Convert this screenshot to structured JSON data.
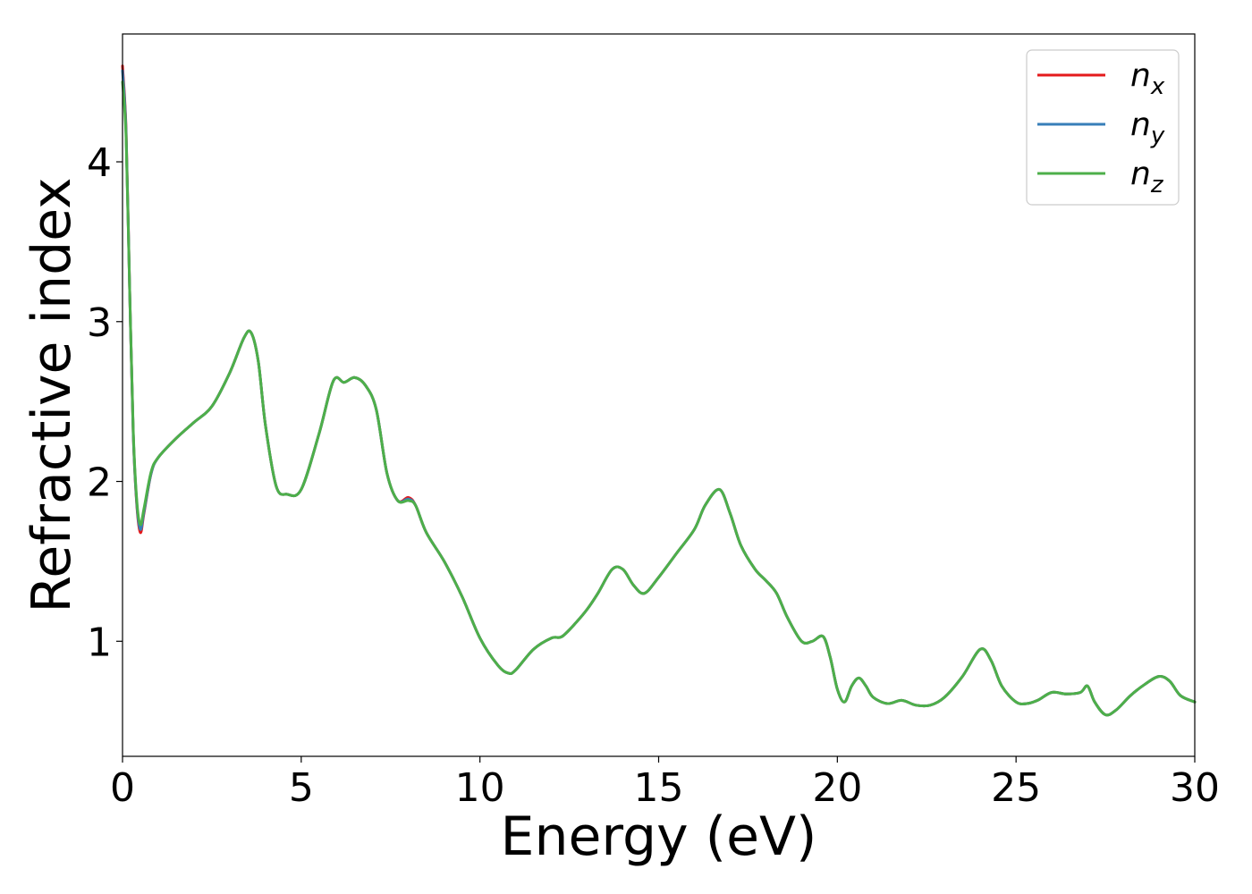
{
  "chart_data": {
    "type": "line",
    "title": "",
    "xlabel": "Energy (eV)",
    "ylabel": "Refractive index",
    "xlim": [
      0,
      30
    ],
    "ylim": [
      0.28,
      4.8
    ],
    "grid": false,
    "legend_position": "top-right",
    "x_ticks": [
      0,
      5,
      10,
      15,
      20,
      25,
      30
    ],
    "x_tick_labels": [
      "0",
      "5",
      "10",
      "15",
      "20",
      "25",
      "30"
    ],
    "y_ticks": [
      1,
      2,
      3,
      4
    ],
    "y_tick_labels": [
      "1",
      "2",
      "3",
      "4"
    ],
    "series": [
      {
        "name": "n_x",
        "legend_base": "n",
        "legend_sub": "x",
        "color": "#e41a1c",
        "x": [
          0,
          0.1,
          0.2,
          0.3,
          0.4,
          0.5,
          0.6,
          0.8,
          1.0,
          1.5,
          2.0,
          2.5,
          3.0,
          3.4,
          3.6,
          3.8,
          4.0,
          4.3,
          4.6,
          5.0,
          5.5,
          5.9,
          6.2,
          6.5,
          6.8,
          7.1,
          7.4,
          7.7,
          8.0,
          8.2,
          8.5,
          9.0,
          9.5,
          10.0,
          10.5,
          10.8,
          11.0,
          11.5,
          12.0,
          12.3,
          12.7,
          13.0,
          13.3,
          13.7,
          14.0,
          14.3,
          14.6,
          15.0,
          15.5,
          16.0,
          16.3,
          16.7,
          17.0,
          17.3,
          17.7,
          18.0,
          18.3,
          18.6,
          19.0,
          19.3,
          19.6,
          19.8,
          20.0,
          20.2,
          20.4,
          20.6,
          20.8,
          21.0,
          21.4,
          21.8,
          22.2,
          22.6,
          23.0,
          23.5,
          24.0,
          24.3,
          24.6,
          25.0,
          25.3,
          25.6,
          26.0,
          26.4,
          26.8,
          27.0,
          27.2,
          27.5,
          27.8,
          28.2,
          28.6,
          29.0,
          29.3,
          29.6,
          30.0
        ],
        "y": [
          4.6,
          4.2,
          3.2,
          2.3,
          1.85,
          1.68,
          1.8,
          2.05,
          2.15,
          2.27,
          2.37,
          2.47,
          2.68,
          2.9,
          2.93,
          2.75,
          2.35,
          1.97,
          1.92,
          1.95,
          2.3,
          2.63,
          2.62,
          2.65,
          2.6,
          2.45,
          2.05,
          1.88,
          1.9,
          1.85,
          1.68,
          1.5,
          1.28,
          1.02,
          0.85,
          0.8,
          0.82,
          0.95,
          1.02,
          1.03,
          1.12,
          1.2,
          1.3,
          1.45,
          1.45,
          1.35,
          1.3,
          1.4,
          1.55,
          1.7,
          1.85,
          1.95,
          1.8,
          1.6,
          1.45,
          1.38,
          1.3,
          1.15,
          1.0,
          1.0,
          1.03,
          0.9,
          0.7,
          0.62,
          0.72,
          0.77,
          0.72,
          0.65,
          0.61,
          0.63,
          0.6,
          0.6,
          0.65,
          0.78,
          0.95,
          0.88,
          0.72,
          0.62,
          0.61,
          0.63,
          0.68,
          0.67,
          0.68,
          0.72,
          0.62,
          0.54,
          0.57,
          0.66,
          0.73,
          0.78,
          0.75,
          0.66,
          0.62
        ]
      },
      {
        "name": "n_y",
        "legend_base": "n",
        "legend_sub": "y",
        "color": "#377eb8",
        "x": [
          0,
          0.1,
          0.2,
          0.3,
          0.4,
          0.5,
          0.6,
          0.8,
          1.0,
          1.5,
          2.0,
          2.5,
          3.0,
          3.4,
          3.6,
          3.8,
          4.0,
          4.3,
          4.6,
          5.0,
          5.5,
          5.9,
          6.2,
          6.5,
          6.8,
          7.1,
          7.4,
          7.7,
          8.0,
          8.2,
          8.5,
          9.0,
          9.5,
          10.0,
          10.5,
          10.8,
          11.0,
          11.5,
          12.0,
          12.3,
          12.7,
          13.0,
          13.3,
          13.7,
          14.0,
          14.3,
          14.6,
          15.0,
          15.5,
          16.0,
          16.3,
          16.7,
          17.0,
          17.3,
          17.7,
          18.0,
          18.3,
          18.6,
          19.0,
          19.3,
          19.6,
          19.8,
          20.0,
          20.2,
          20.4,
          20.6,
          20.8,
          21.0,
          21.4,
          21.8,
          22.2,
          22.6,
          23.0,
          23.5,
          24.0,
          24.3,
          24.6,
          25.0,
          25.3,
          25.6,
          26.0,
          26.4,
          26.8,
          27.0,
          27.2,
          27.5,
          27.8,
          28.2,
          28.6,
          29.0,
          29.3,
          29.6,
          30.0
        ],
        "y": [
          4.57,
          4.18,
          3.2,
          2.3,
          1.86,
          1.7,
          1.81,
          2.05,
          2.15,
          2.27,
          2.37,
          2.47,
          2.68,
          2.9,
          2.93,
          2.75,
          2.35,
          1.97,
          1.92,
          1.95,
          2.3,
          2.63,
          2.62,
          2.65,
          2.6,
          2.45,
          2.05,
          1.88,
          1.89,
          1.85,
          1.68,
          1.5,
          1.28,
          1.02,
          0.85,
          0.8,
          0.82,
          0.95,
          1.02,
          1.03,
          1.12,
          1.2,
          1.3,
          1.45,
          1.45,
          1.35,
          1.3,
          1.4,
          1.55,
          1.7,
          1.85,
          1.95,
          1.8,
          1.6,
          1.45,
          1.38,
          1.3,
          1.15,
          1.0,
          1.0,
          1.03,
          0.9,
          0.7,
          0.62,
          0.72,
          0.77,
          0.72,
          0.65,
          0.61,
          0.63,
          0.6,
          0.6,
          0.65,
          0.78,
          0.95,
          0.88,
          0.72,
          0.62,
          0.61,
          0.63,
          0.68,
          0.67,
          0.68,
          0.72,
          0.62,
          0.54,
          0.57,
          0.66,
          0.73,
          0.78,
          0.75,
          0.66,
          0.62
        ]
      },
      {
        "name": "n_z",
        "legend_base": "n",
        "legend_sub": "z",
        "color": "#4daf4a",
        "x": [
          0,
          0.1,
          0.2,
          0.3,
          0.4,
          0.5,
          0.6,
          0.8,
          1.0,
          1.5,
          2.0,
          2.5,
          3.0,
          3.4,
          3.6,
          3.8,
          4.0,
          4.3,
          4.6,
          5.0,
          5.5,
          5.9,
          6.2,
          6.5,
          6.8,
          7.1,
          7.4,
          7.7,
          8.0,
          8.2,
          8.5,
          9.0,
          9.5,
          10.0,
          10.5,
          10.8,
          11.0,
          11.5,
          12.0,
          12.3,
          12.7,
          13.0,
          13.3,
          13.7,
          14.0,
          14.3,
          14.6,
          15.0,
          15.5,
          16.0,
          16.3,
          16.7,
          17.0,
          17.3,
          17.7,
          18.0,
          18.3,
          18.6,
          19.0,
          19.3,
          19.6,
          19.8,
          20.0,
          20.2,
          20.4,
          20.6,
          20.8,
          21.0,
          21.4,
          21.8,
          22.2,
          22.6,
          23.0,
          23.5,
          24.0,
          24.3,
          24.6,
          25.0,
          25.3,
          25.6,
          26.0,
          26.4,
          26.8,
          27.0,
          27.2,
          27.5,
          27.8,
          28.2,
          28.6,
          29.0,
          29.3,
          29.6,
          30.0
        ],
        "y": [
          4.5,
          4.15,
          3.2,
          2.32,
          1.88,
          1.73,
          1.83,
          2.06,
          2.15,
          2.27,
          2.37,
          2.47,
          2.68,
          2.9,
          2.93,
          2.75,
          2.35,
          1.97,
          1.92,
          1.95,
          2.3,
          2.63,
          2.62,
          2.65,
          2.6,
          2.45,
          2.05,
          1.88,
          1.88,
          1.85,
          1.68,
          1.5,
          1.28,
          1.02,
          0.85,
          0.8,
          0.82,
          0.95,
          1.02,
          1.03,
          1.12,
          1.2,
          1.3,
          1.45,
          1.45,
          1.35,
          1.3,
          1.4,
          1.55,
          1.7,
          1.85,
          1.95,
          1.8,
          1.6,
          1.45,
          1.38,
          1.3,
          1.15,
          1.0,
          1.0,
          1.03,
          0.9,
          0.7,
          0.62,
          0.72,
          0.77,
          0.72,
          0.65,
          0.61,
          0.63,
          0.6,
          0.6,
          0.65,
          0.78,
          0.95,
          0.88,
          0.72,
          0.62,
          0.61,
          0.63,
          0.68,
          0.67,
          0.68,
          0.72,
          0.62,
          0.54,
          0.57,
          0.66,
          0.73,
          0.78,
          0.75,
          0.66,
          0.62
        ]
      }
    ]
  }
}
